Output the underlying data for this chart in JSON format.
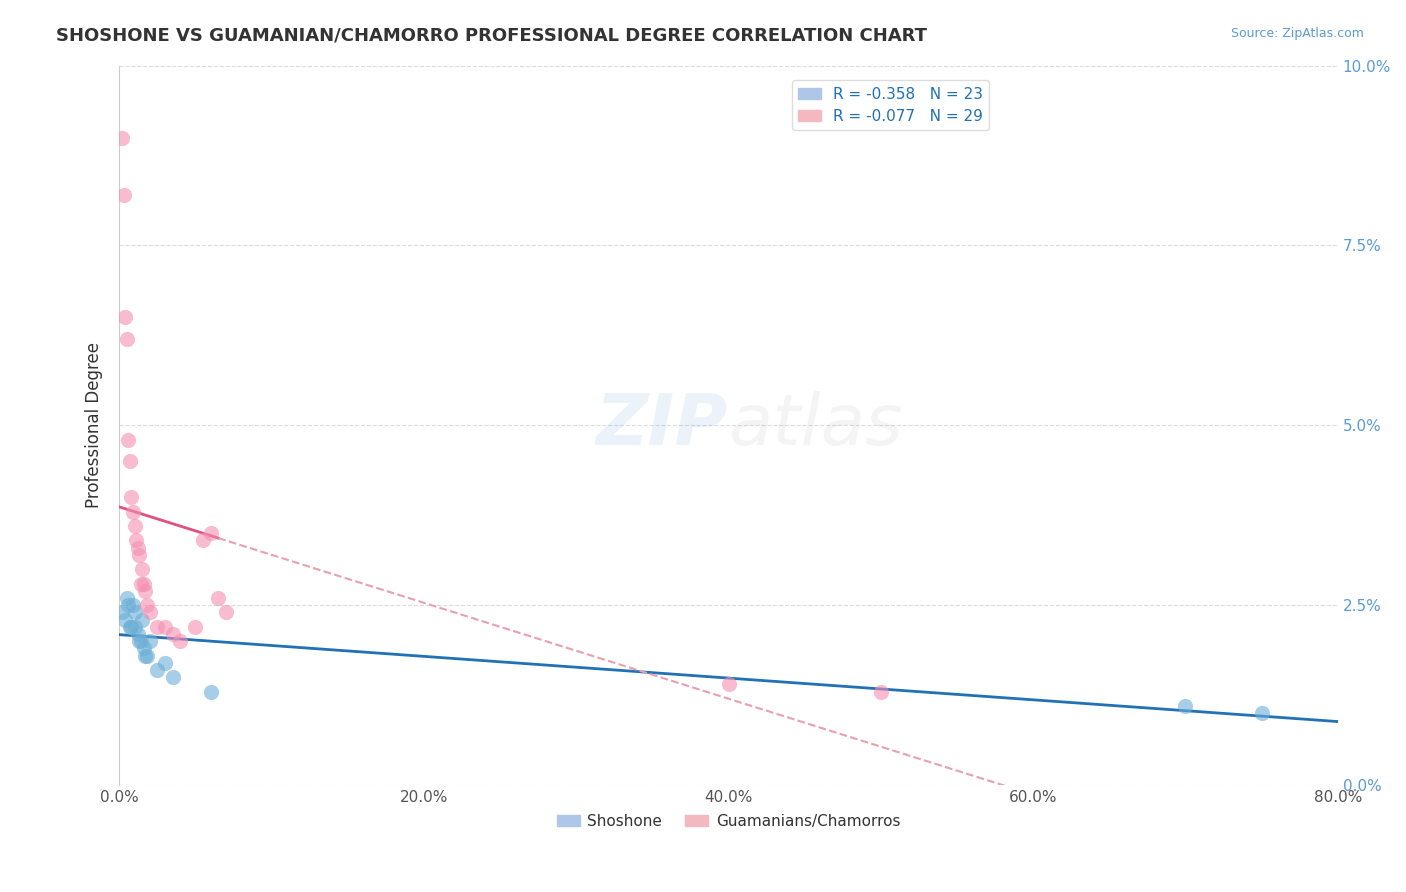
{
  "title": "SHOSHONE VS GUAMANIAN/CHAMORRO PROFESSIONAL DEGREE CORRELATION CHART",
  "source": "Source: ZipAtlas.com",
  "ylabel": "Professional Degree",
  "xlabel_ticks": [
    "0.0%",
    "20.0%",
    "40.0%",
    "60.0%",
    "80.0%"
  ],
  "ytick_labels": [
    "0.0%",
    "2.5%",
    "5.0%",
    "7.5%",
    "10.0%"
  ],
  "xlim": [
    0.0,
    0.8
  ],
  "ylim": [
    0.0,
    0.1
  ],
  "legend_bottom": [
    "Shoshone",
    "Guamanians/Chamorros"
  ],
  "shoshone_color": "#6baed6",
  "guamanian_color": "#f48fb1",
  "shoshone_x": [
    0.002,
    0.004,
    0.005,
    0.006,
    0.007,
    0.008,
    0.009,
    0.01,
    0.01,
    0.012,
    0.013,
    0.014,
    0.015,
    0.016,
    0.017,
    0.018,
    0.02,
    0.025,
    0.03,
    0.035,
    0.06,
    0.7,
    0.75
  ],
  "shoshone_y": [
    0.024,
    0.023,
    0.026,
    0.025,
    0.022,
    0.022,
    0.025,
    0.024,
    0.022,
    0.021,
    0.02,
    0.02,
    0.023,
    0.019,
    0.018,
    0.018,
    0.02,
    0.016,
    0.017,
    0.015,
    0.013,
    0.011,
    0.01
  ],
  "guamanian_x": [
    0.002,
    0.003,
    0.004,
    0.005,
    0.006,
    0.007,
    0.008,
    0.009,
    0.01,
    0.011,
    0.012,
    0.013,
    0.014,
    0.015,
    0.016,
    0.017,
    0.018,
    0.02,
    0.025,
    0.03,
    0.035,
    0.04,
    0.05,
    0.055,
    0.06,
    0.065,
    0.07,
    0.4,
    0.5
  ],
  "guamanian_y": [
    0.09,
    0.082,
    0.065,
    0.062,
    0.048,
    0.045,
    0.04,
    0.038,
    0.036,
    0.034,
    0.033,
    0.032,
    0.028,
    0.03,
    0.028,
    0.027,
    0.025,
    0.024,
    0.022,
    0.022,
    0.021,
    0.02,
    0.022,
    0.034,
    0.035,
    0.026,
    0.024,
    0.014,
    0.013
  ],
  "background_color": "#ffffff",
  "grid_color": "#cccccc",
  "title_color": "#333333"
}
